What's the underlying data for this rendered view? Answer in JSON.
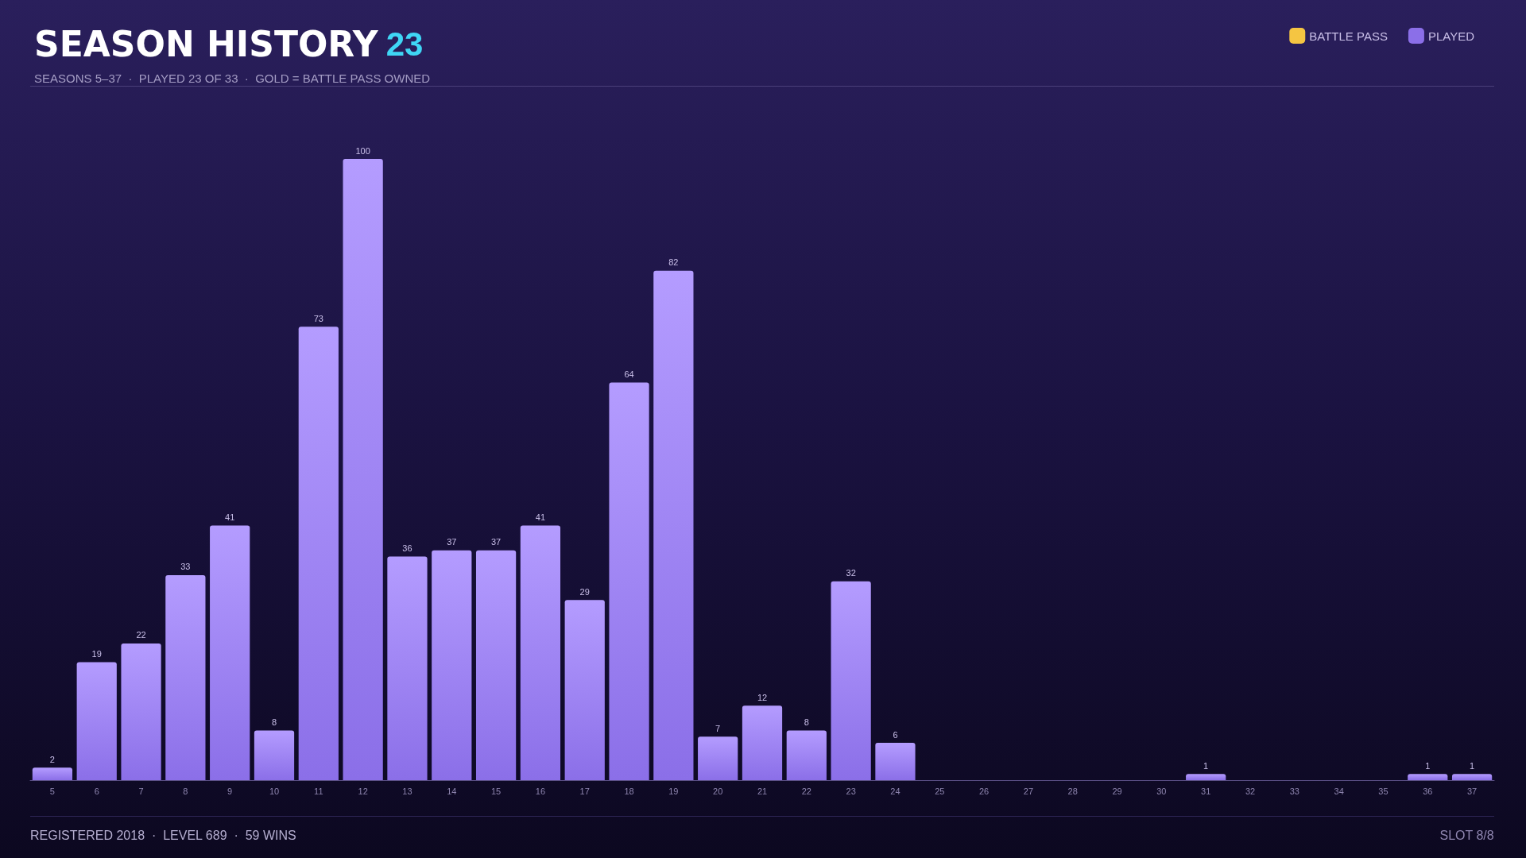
{
  "chart_data": {
    "type": "bar",
    "title": "SEASON HISTORY",
    "subtitle": "SEASONS 5–37  ·  PLAYED 23 OF 33  ·  GOLD = BATTLE PASS OWNED",
    "annotations": [
      "23",
      "REGISTERED 2018  ·  LEVEL 689  ·  59 WINS",
      "SLOT 8/8"
    ],
    "categories": [
      "5",
      "6",
      "7",
      "8",
      "9",
      "10",
      "11",
      "12",
      "13",
      "14",
      "15",
      "16",
      "17",
      "18",
      "19",
      "20",
      "21",
      "22",
      "23",
      "24",
      "25",
      "26",
      "27",
      "28",
      "29",
      "30",
      "31",
      "32",
      "33",
      "34",
      "35",
      "36",
      "37"
    ],
    "series": [
      {
        "name": "BATTLE PASS",
        "color": "#f5c542",
        "values": [
          null,
          null,
          null,
          null,
          null,
          null,
          null,
          null,
          null,
          null,
          null,
          null,
          null,
          null,
          null,
          null,
          null,
          null,
          null,
          null,
          null,
          null,
          null,
          null,
          null,
          null,
          null,
          null,
          null,
          null,
          null,
          null,
          null
        ]
      },
      {
        "name": "PLAYED",
        "color": "#8b6fe8",
        "values": [
          2,
          19,
          22,
          33,
          41,
          8,
          73,
          100,
          36,
          37,
          37,
          41,
          29,
          64,
          82,
          7,
          12,
          8,
          32,
          6,
          0,
          0,
          0,
          0,
          0,
          0,
          1,
          0,
          0,
          0,
          0,
          1,
          1
        ],
        "value_labels": [
          "2",
          "19",
          "22",
          "33",
          "41",
          "8",
          "73",
          "100",
          "36",
          "37",
          "37",
          "41",
          "29",
          "64",
          "82",
          "7",
          "12",
          "8",
          "32",
          "6",
          null,
          null,
          null,
          null,
          null,
          null,
          "1",
          null,
          null,
          null,
          null,
          "1",
          "1"
        ]
      }
    ],
    "legend": "top right",
    "tick_labels": "x"
  }
}
